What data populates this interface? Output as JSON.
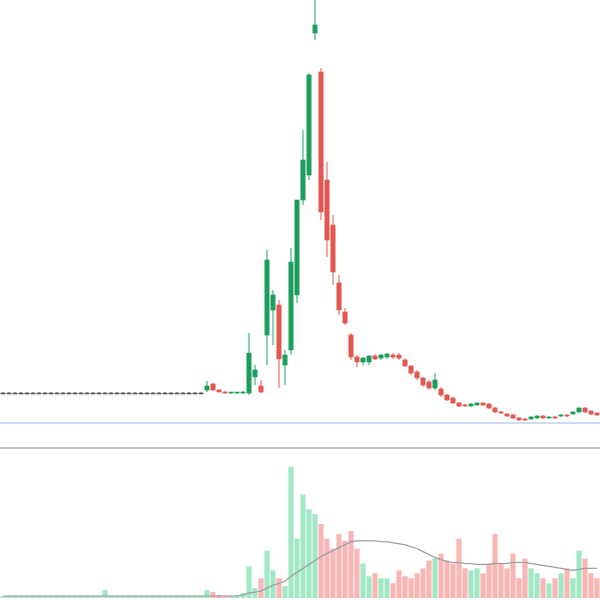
{
  "chart_data": {
    "type": "candlestick",
    "up_color": "#1f9d5c",
    "down_color": "#e2574f",
    "flat_color": "#555555",
    "volume_up_color": "#a3e8c6",
    "volume_down_color": "#f8b7b5",
    "ma_color": "#a0a0a0",
    "price_line_color": "#9bbbe0",
    "ylim": [
      0,
      425
    ],
    "volume_ylim": [
      0,
      150
    ],
    "price_line": 2,
    "open": [
      32,
      32,
      32,
      32,
      32,
      32,
      32,
      32,
      32,
      32,
      32,
      32,
      32,
      32,
      32,
      32,
      32,
      32,
      32,
      32,
      32,
      32,
      32,
      32,
      32,
      32,
      32,
      32,
      32,
      32,
      32,
      32,
      32,
      32,
      35,
      41,
      35,
      33,
      32,
      32,
      32,
      32,
      48,
      39,
      90,
      115,
      120,
      60,
      75,
      130,
      225,
      250,
      392,
      353,
      245,
      200,
      142,
      113,
      90,
      68,
      63,
      63,
      69,
      67,
      68,
      70,
      70,
      65,
      59,
      53,
      47,
      43,
      37,
      36,
      30,
      27,
      22,
      20,
      19,
      20,
      22,
      21,
      17,
      13,
      11,
      10,
      7,
      6,
      6,
      7,
      9,
      7,
      8,
      9,
      10,
      11,
      13,
      17,
      14,
      12
    ],
    "high": [
      33,
      33,
      33,
      33,
      33,
      33,
      33,
      33,
      33,
      33,
      33,
      33,
      33,
      33,
      33,
      33,
      33,
      33,
      33,
      33,
      33,
      33,
      33,
      33,
      33,
      33,
      33,
      33,
      33,
      33,
      33,
      33,
      33,
      33,
      44,
      42,
      36,
      34,
      33,
      33,
      34,
      92,
      60,
      45,
      175,
      135,
      125,
      75,
      177,
      225,
      295,
      352,
      425,
      357,
      263,
      210,
      150,
      117,
      92,
      70,
      68,
      70,
      71,
      71,
      72,
      72,
      72,
      67,
      60,
      55,
      48,
      45,
      52,
      38,
      31,
      28,
      23,
      21,
      22,
      23,
      23,
      22,
      18,
      14,
      12,
      11,
      8,
      7,
      9,
      10,
      10,
      9,
      9,
      11,
      11,
      14,
      18,
      18,
      15,
      13
    ],
    "low": [
      31,
      31,
      31,
      31,
      31,
      31,
      31,
      31,
      31,
      31,
      31,
      31,
      31,
      31,
      31,
      31,
      31,
      31,
      31,
      31,
      31,
      31,
      31,
      31,
      31,
      31,
      31,
      31,
      31,
      31,
      31,
      31,
      31,
      31,
      33,
      34,
      33,
      31,
      31,
      31,
      31,
      30,
      40,
      32,
      60,
      80,
      37,
      40,
      70,
      122,
      220,
      245,
      385,
      205,
      168,
      140,
      110,
      100,
      65,
      58,
      60,
      60,
      65,
      65,
      66,
      66,
      65,
      58,
      50,
      45,
      38,
      35,
      35,
      28,
      24,
      21,
      18,
      18,
      18,
      19,
      19,
      16,
      12,
      11,
      8,
      6,
      4,
      4,
      5,
      6,
      6,
      6,
      6,
      8,
      8,
      10,
      12,
      12,
      10,
      9
    ],
    "close": [
      32,
      32,
      32,
      32,
      32,
      32,
      32,
      32,
      32,
      32,
      32,
      32,
      32,
      32,
      32,
      32,
      32,
      32,
      32,
      32,
      32,
      32,
      32,
      32,
      32,
      32,
      32,
      32,
      32,
      32,
      32,
      32,
      32,
      32,
      39,
      35,
      33,
      32,
      33,
      33,
      33,
      72,
      55,
      33,
      165,
      130,
      66,
      70,
      163,
      225,
      265,
      350,
      400,
      213,
      185,
      153,
      115,
      102,
      68,
      63,
      67,
      69,
      66,
      70,
      71,
      68,
      67,
      59,
      52,
      47,
      40,
      37,
      45,
      30,
      25,
      22,
      19,
      19,
      21,
      22,
      20,
      17,
      13,
      12,
      9,
      7,
      5,
      5,
      8,
      9,
      7,
      8,
      7,
      10,
      9,
      13,
      17,
      13,
      11,
      10
    ],
    "volume": [
      2,
      2,
      2,
      2,
      2,
      2,
      2,
      2,
      2,
      2,
      2,
      2,
      2,
      2,
      2,
      2,
      2,
      8,
      2,
      2,
      2,
      2,
      2,
      2,
      2,
      2,
      2,
      2,
      2,
      2,
      2,
      2,
      2,
      2,
      8,
      6,
      3,
      2,
      2,
      3,
      5,
      32,
      10,
      20,
      48,
      28,
      20,
      12,
      133,
      60,
      105,
      90,
      85,
      75,
      60,
      50,
      65,
      58,
      68,
      50,
      35,
      22,
      25,
      20,
      20,
      15,
      28,
      22,
      20,
      25,
      30,
      38,
      40,
      45,
      38,
      35,
      60,
      30,
      28,
      30,
      25,
      35,
      65,
      35,
      30,
      45,
      20,
      40,
      30,
      25,
      20,
      15,
      20,
      25,
      30,
      20,
      48,
      40,
      25,
      20
    ],
    "volume_ma": [
      2,
      2,
      2,
      2,
      2,
      2,
      2,
      2,
      2,
      2,
      2,
      2,
      2,
      2,
      2,
      2,
      2,
      2,
      2,
      2,
      2,
      2,
      2,
      2,
      2,
      2,
      2,
      2,
      2,
      2,
      2,
      2,
      2,
      2,
      2,
      2,
      2,
      2,
      2,
      2,
      3,
      5,
      6,
      7,
      10,
      13,
      15,
      17,
      22,
      26,
      30,
      34,
      38,
      42,
      45,
      48,
      51,
      54,
      57,
      58,
      58,
      58,
      58,
      57,
      57,
      56,
      55,
      54,
      52,
      50,
      47,
      44,
      41,
      39,
      37,
      36,
      36,
      35,
      35,
      34,
      34,
      34,
      35,
      35,
      35,
      36,
      36,
      36,
      35,
      34,
      33,
      32,
      31,
      30,
      29,
      28,
      29,
      30,
      30,
      30
    ]
  }
}
